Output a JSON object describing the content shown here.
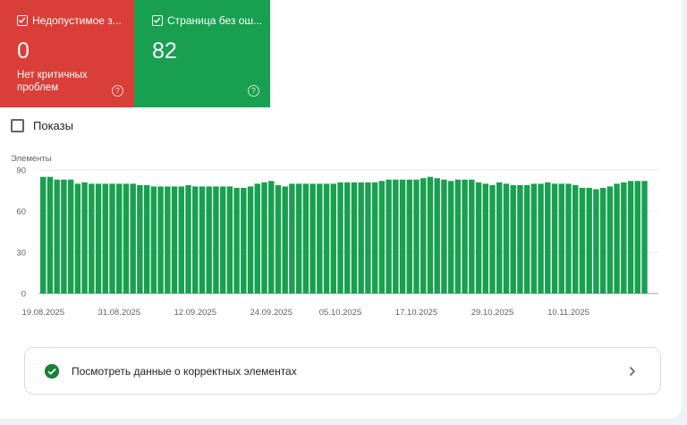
{
  "tiles": [
    {
      "label": "Недопустимое з...",
      "value": "0",
      "sub": "Нет критичных проблем",
      "color": "#d93f38"
    },
    {
      "label": "Страница без ош...",
      "value": "82",
      "sub": "",
      "color": "#18a050"
    }
  ],
  "metric_toggle": {
    "label": "Показы"
  },
  "chart_data": {
    "type": "bar",
    "ylabel": "Элементы",
    "ylim": [
      0,
      90
    ],
    "yticks": [
      0,
      30,
      60,
      90
    ],
    "xtick_labels": [
      "19.08.2025",
      "31.08.2025",
      "12.09.2025",
      "24.09.2025",
      "05.10.2025",
      "17.10.2025",
      "29.10.2025",
      "10.11.2025"
    ],
    "bar_color": "#18a050",
    "values": [
      85,
      85,
      83,
      83,
      83,
      80,
      81,
      80,
      80,
      80,
      80,
      80,
      80,
      80,
      79,
      79,
      78,
      78,
      78,
      78,
      78,
      79,
      78,
      78,
      78,
      78,
      78,
      78,
      77,
      77,
      78,
      80,
      81,
      82,
      79,
      78,
      80,
      80,
      80,
      80,
      80,
      80,
      80,
      81,
      81,
      81,
      81,
      81,
      81,
      82,
      83,
      83,
      83,
      83,
      83,
      84,
      85,
      84,
      83,
      82,
      83,
      83,
      83,
      81,
      80,
      79,
      81,
      80,
      79,
      79,
      79,
      80,
      80,
      81,
      80,
      80,
      80,
      79,
      77,
      77,
      76,
      77,
      78,
      80,
      81,
      82,
      82,
      82
    ]
  },
  "summary": {
    "text": "Посмотреть данные о корректных элементах"
  }
}
